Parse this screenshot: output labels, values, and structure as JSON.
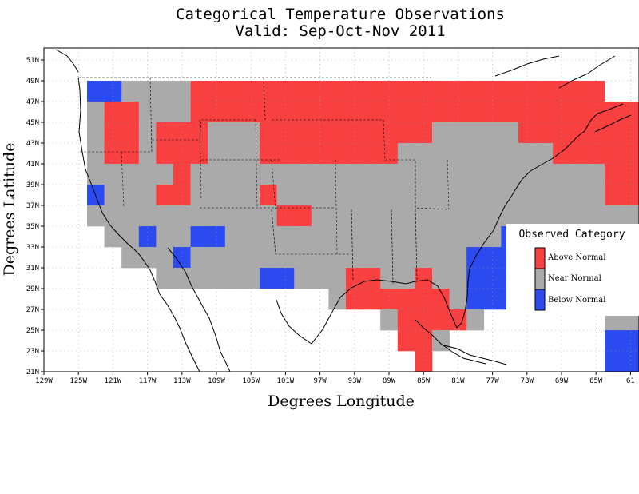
{
  "title_line1": "Categorical Temperature Observations",
  "title_line2": "Valid: Sep-Oct-Nov 2011",
  "xlabel": "Degrees Longitude",
  "ylabel": "Degrees Latitude",
  "x_ticks": [
    "129W",
    "125W",
    "121W",
    "117W",
    "113W",
    "109W",
    "105W",
    "101W",
    "97W",
    "93W",
    "89W",
    "85W",
    "81W",
    "77W",
    "73W",
    "69W",
    "65W",
    "61"
  ],
  "y_ticks": [
    "51N",
    "49N",
    "47N",
    "45N",
    "43N",
    "41N",
    "39N",
    "37N",
    "35N",
    "33N",
    "31N",
    "29N",
    "27N",
    "25N",
    "23N",
    "21N"
  ],
  "legend": {
    "title": "Observed Category",
    "items": [
      {
        "label": "Above Normal",
        "color": "#f84040"
      },
      {
        "label": "Near Normal",
        "color": "#aaaaaa"
      },
      {
        "label": "Below Normal",
        "color": "#2b4bf0"
      }
    ]
  },
  "chart_data": {
    "type": "heatmap",
    "title": "Categorical Temperature Observations",
    "subtitle": "Valid: Sep-Oct-Nov 2011",
    "xlabel": "Degrees Longitude",
    "ylabel": "Degrees Latitude",
    "xlim": [
      -129,
      -61
    ],
    "ylim": [
      21,
      52
    ],
    "grid": true,
    "legend_position": "right",
    "cell_size_deg": 2,
    "category_codes": {
      "A": "Above Normal",
      "N": "Near Normal",
      "B": "Below Normal"
    },
    "grid_origin": {
      "west_lon": -126,
      "north_lat": 49
    },
    "rows": [
      ".BBNNNNAAAAAAAAAAAAAAAAAAAAAAAA........",
      ".NAANNNAAAAAAAAAAAAAAAAAAAAAAAAAAAAAAAA",
      ".NAANAAANNNAAAAAAAAAANNNNNAAAAAAAAAAAA.",
      ".NAANAAANNNAAAAAAAANNNNNNNNNAAAAAAAAAA.",
      ".NNNNNANNNNNNNNNNNNNNNNNNNNNNNNAAAAAAA.",
      ".BNNNAANNNNANNNNNNNNNNNNNNNNNNNAAAAA...",
      ".NNNNNNNNNNNAANNNNNNNNNNNNNNNNNNNNAA...",
      "..NNBNNBBNNNNNNNNNNNNNNNNBNNNNNNNNNN...",
      "...NNNBNNNNNNNNNNNNNNNNBBBBBBBNBB.....",
      ".....NNNNNNBBNNNAANNANNBBBBBBBBBB.....",
      "...............NAAAAAANBBBBBBBBBB.....",
      "..................NAAAAN.......NN.....",
      "...................AAN.........BB.....",
      "....................A..........BB....."
    ]
  }
}
